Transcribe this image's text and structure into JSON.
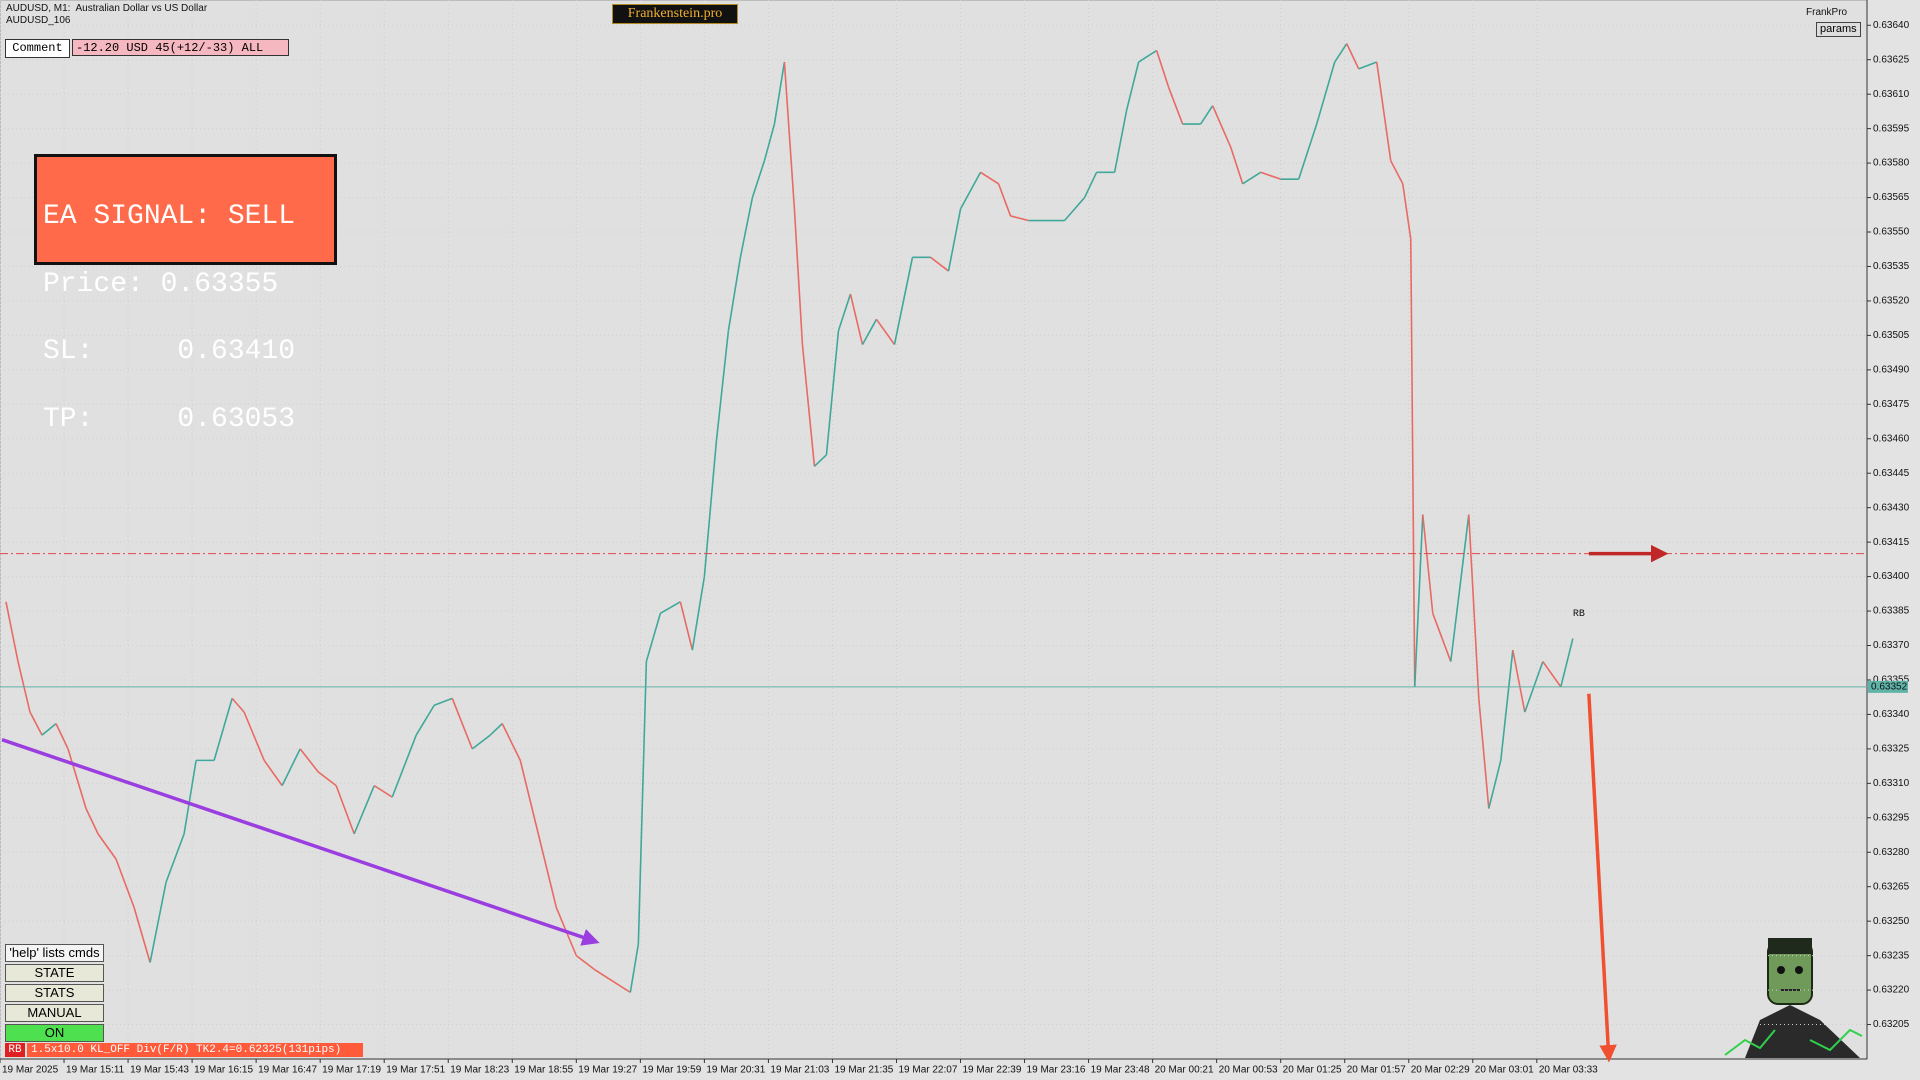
{
  "chart_data": {
    "type": "line",
    "header": [
      "AUDUSD, M1:  Australian Dollar vs US Dollar",
      "AUDUSD_106"
    ],
    "x": [
      3,
      9,
      15,
      21,
      28,
      34,
      43,
      49,
      58,
      67,
      75,
      83,
      92,
      98,
      107,
      116,
      122,
      132,
      141,
      150,
      159,
      168,
      177,
      187,
      196,
      208,
      217,
      226,
      236,
      245,
      251,
      260,
      269,
      278,
      288,
      297,
      306,
      315,
      319,
      323,
      330,
      340,
      346,
      352,
      358,
      364,
      370,
      376,
      382,
      387,
      392,
      397,
      401,
      407,
      413,
      419,
      425,
      431,
      438,
      447,
      456,
      465,
      474,
      480,
      490,
      499,
      505,
      514,
      523,
      532,
      542,
      548,
      557,
      563,
      569,
      578,
      584,
      591,
      600,
      606,
      615,
      621,
      630,
      640,
      649,
      658,
      667,
      673,
      679,
      688,
      695,
      701,
      705,
      707,
      711,
      716,
      725,
      734,
      739,
      744,
      750,
      756,
      762,
      771,
      780,
      786
    ],
    "values": [
      0.63389,
      0.63363,
      0.63341,
      0.63331,
      0.63336,
      0.63325,
      0.63299,
      0.63288,
      0.63277,
      0.63256,
      0.63232,
      0.63267,
      0.63288,
      0.6332,
      0.6332,
      0.63347,
      0.63341,
      0.6332,
      0.63309,
      0.63325,
      0.63315,
      0.63309,
      0.63288,
      0.63309,
      0.63304,
      0.63331,
      0.63344,
      0.63347,
      0.63325,
      0.63331,
      0.63336,
      0.6332,
      0.63288,
      0.63256,
      0.63235,
      0.63229,
      0.63224,
      0.63219,
      0.6324,
      0.63363,
      0.63384,
      0.63389,
      0.63368,
      0.634,
      0.63459,
      0.63507,
      0.63539,
      0.63565,
      0.63581,
      0.63597,
      0.63624,
      0.6356,
      0.63501,
      0.63448,
      0.63453,
      0.63507,
      0.63523,
      0.63501,
      0.63512,
      0.63501,
      0.63539,
      0.63539,
      0.63533,
      0.6356,
      0.63576,
      0.63571,
      0.63557,
      0.63555,
      0.63555,
      0.63555,
      0.63565,
      0.63576,
      0.63576,
      0.63603,
      0.63624,
      0.63629,
      0.63613,
      0.63597,
      0.63597,
      0.63605,
      0.63587,
      0.63571,
      0.63576,
      0.63573,
      0.63573,
      0.63597,
      0.63624,
      0.63632,
      0.63621,
      0.63624,
      0.63581,
      0.63571,
      0.63547,
      0.63352,
      0.63427,
      0.63384,
      0.63363,
      0.63427,
      0.63347,
      0.63299,
      0.6332,
      0.63368,
      0.63341,
      0.63363,
      0.63352,
      0.63373
    ],
    "up_color": "#3fa89a",
    "down_color": "#e86a62",
    "xlim": [
      0,
      933
    ],
    "ylim": [
      0.6319,
      0.63651
    ],
    "grid": true,
    "xticks": [
      {
        "value": 0,
        "label": "19 Mar 2025"
      },
      {
        "value": 32,
        "label": "19 Mar 15:11"
      },
      {
        "value": 64,
        "label": "19 Mar 15:43"
      },
      {
        "value": 96,
        "label": "19 Mar 16:15"
      },
      {
        "value": 128,
        "label": "19 Mar 16:47"
      },
      {
        "value": 160,
        "label": "19 Mar 17:19"
      },
      {
        "value": 192,
        "label": "19 Mar 17:51"
      },
      {
        "value": 224,
        "label": "19 Mar 18:23"
      },
      {
        "value": 256,
        "label": "19 Mar 18:55"
      },
      {
        "value": 288,
        "label": "19 Mar 19:27"
      },
      {
        "value": 320,
        "label": "19 Mar 19:59"
      },
      {
        "value": 352,
        "label": "19 Mar 20:31"
      },
      {
        "value": 384,
        "label": "19 Mar 21:03"
      },
      {
        "value": 416,
        "label": "19 Mar 21:35"
      },
      {
        "value": 448,
        "label": "19 Mar 22:07"
      },
      {
        "value": 480,
        "label": "19 Mar 22:39"
      },
      {
        "value": 512,
        "label": "19 Mar 23:16"
      },
      {
        "value": 544,
        "label": "19 Mar 23:48"
      },
      {
        "value": 576,
        "label": "20 Mar 00:21"
      },
      {
        "value": 608,
        "label": "20 Mar 00:53"
      },
      {
        "value": 640,
        "label": "20 Mar 01:25"
      },
      {
        "value": 672,
        "label": "20 Mar 01:57"
      },
      {
        "value": 704,
        "label": "20 Mar 02:29"
      },
      {
        "value": 736,
        "label": "20 Mar 03:01"
      },
      {
        "value": 768,
        "label": "20 Mar 03:33"
      }
    ],
    "yticks": [
      {
        "value": 0.6364,
        "label": "0.63640"
      },
      {
        "value": 0.63625,
        "label": "0.63625"
      },
      {
        "value": 0.6361,
        "label": "0.63610"
      },
      {
        "value": 0.63595,
        "label": "0.63595"
      },
      {
        "value": 0.6358,
        "label": "0.63580"
      },
      {
        "value": 0.63565,
        "label": "0.63565"
      },
      {
        "value": 0.6355,
        "label": "0.63550"
      },
      {
        "value": 0.63535,
        "label": "0.63535"
      },
      {
        "value": 0.6352,
        "label": "0.63520"
      },
      {
        "value": 0.63505,
        "label": "0.63505"
      },
      {
        "value": 0.6349,
        "label": "0.63490"
      },
      {
        "value": 0.63475,
        "label": "0.63475"
      },
      {
        "value": 0.6346,
        "label": "0.63460"
      },
      {
        "value": 0.63445,
        "label": "0.63445"
      },
      {
        "value": 0.6343,
        "label": "0.63430"
      },
      {
        "value": 0.63415,
        "label": "0.63415"
      },
      {
        "value": 0.634,
        "label": "0.63400"
      },
      {
        "value": 0.63385,
        "label": "0.63385"
      },
      {
        "value": 0.6337,
        "label": "0.63370"
      },
      {
        "value": 0.63355,
        "label": "0.63355"
      },
      {
        "value": 0.6334,
        "label": "0.63340"
      },
      {
        "value": 0.63325,
        "label": "0.63325"
      },
      {
        "value": 0.6331,
        "label": "0.63310"
      },
      {
        "value": 0.63295,
        "label": "0.63295"
      },
      {
        "value": 0.6328,
        "label": "0.63280"
      },
      {
        "value": 0.63265,
        "label": "0.63265"
      },
      {
        "value": 0.6325,
        "label": "0.63250"
      },
      {
        "value": 0.63235,
        "label": "0.63235"
      },
      {
        "value": 0.6322,
        "label": "0.63220"
      },
      {
        "value": 0.63205,
        "label": "0.63205"
      }
    ],
    "hlines": [
      {
        "value": 0.63352,
        "color": "#5fb3a8",
        "dash": false,
        "show_label": true
      },
      {
        "value": 0.6341,
        "color": "#e04a4a",
        "dash": true,
        "show_label": false
      }
    ],
    "arrows": [
      {
        "x": [
          1,
          298
        ],
        "y": [
          0.63329,
          0.63241
        ],
        "color": "#9a3ee0"
      },
      {
        "x": [
          794,
          832
        ],
        "y": [
          0.6341,
          0.6341
        ],
        "color": "#c02828"
      },
      {
        "x": [
          794,
          804
        ],
        "y": [
          0.63349,
          0.6319
        ],
        "color": "#f05030"
      }
    ],
    "annotations": [
      {
        "text": "RB",
        "x": 786,
        "y": 0.63384,
        "color": "#e03030"
      }
    ]
  },
  "ui": {
    "brand": "Frankenstein.pro",
    "user": "FrankPro",
    "params_button": "params",
    "comment_button": "Comment",
    "account": "-12.20 USD 45(+12/-33) ALL",
    "signal": [
      "EA SIGNAL: SELL",
      "Price: 0.63355",
      "SL:     0.63410",
      "TP:     0.63053"
    ],
    "help": "'help' lists cmds",
    "buttons": [
      "STATE",
      "STATS",
      "MANUAL",
      "ON"
    ],
    "status_tag": "RB",
    "status": "1.5x10.0 KL_OFF Div(F/R) TK2.4=0.62325(131pips)"
  }
}
